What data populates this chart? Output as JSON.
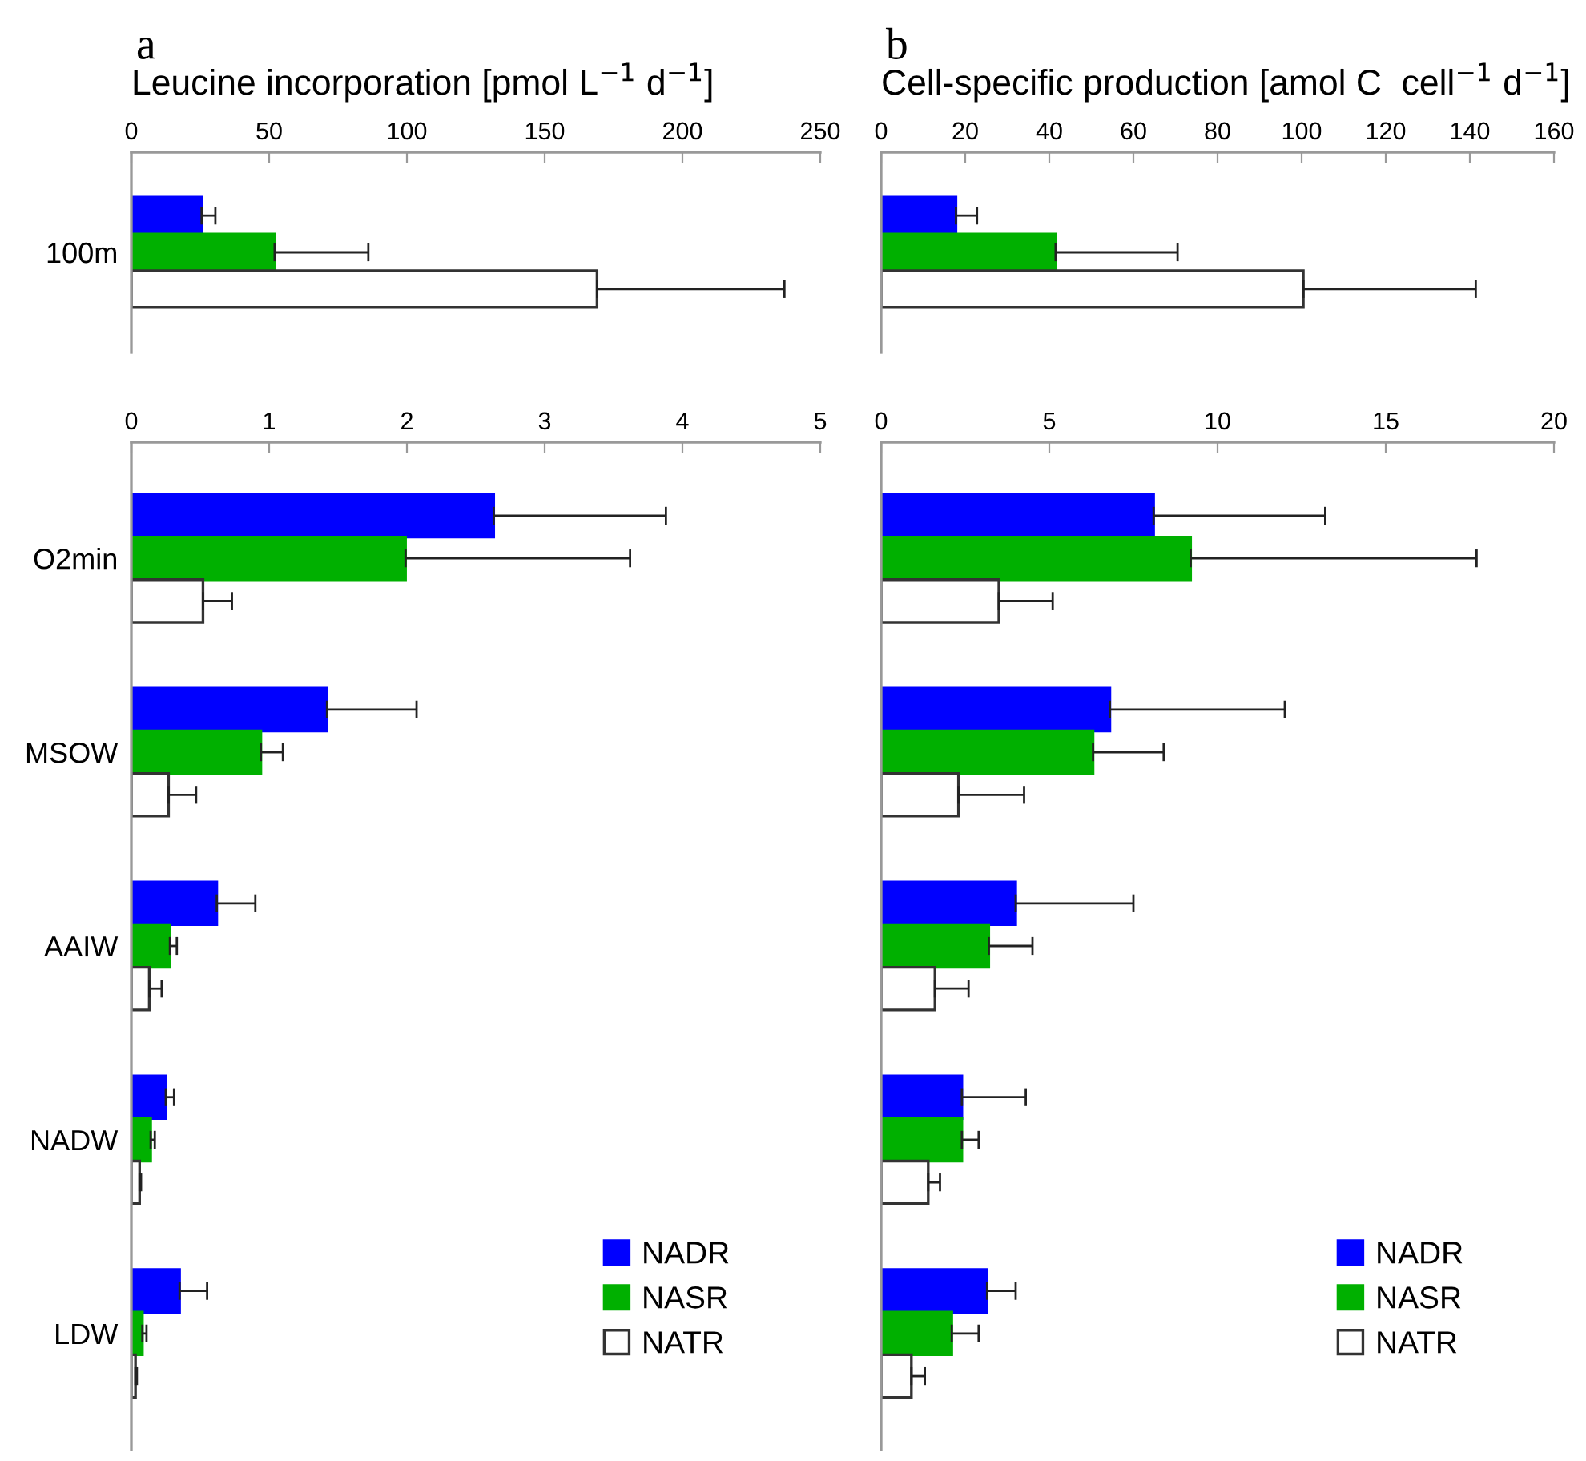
{
  "chart_data": [
    {
      "type": "bar",
      "orientation": "horizontal",
      "annotations": [
        "a"
      ],
      "xlabel": "Leucine incorporation [pmol L$^{−1}$ d$^{−1}$]",
      "categories": [
        "100m"
      ],
      "xlim": [
        0,
        250
      ],
      "xticks": [
        0,
        50,
        100,
        150,
        200,
        250
      ],
      "grid": false,
      "legend": false,
      "series": [
        {
          "color": "#0000ff",
          "values": [
            25.5
          ],
          "errors": [
            5
          ]
        },
        {
          "color": "#00b000",
          "values": [
            52
          ],
          "errors": [
            34
          ]
        },
        {
          "color": "#ffffff",
          "values": [
            169
          ],
          "errors": [
            68
          ]
        }
      ]
    },
    {
      "type": "bar",
      "orientation": "horizontal",
      "categories": [
        "O2min",
        "MSOW",
        "AAIW",
        "NADW",
        "LDW"
      ],
      "xlim": [
        0,
        5
      ],
      "xticks": [
        0,
        1,
        2,
        3,
        4,
        5
      ],
      "grid": false,
      "legend": "bottom right",
      "series": [
        {
          "name": "NADR",
          "color": "#0000ff",
          "values": [
            2.63,
            1.42,
            0.62,
            0.25,
            0.35
          ],
          "errors": [
            1.25,
            0.65,
            0.28,
            0.06,
            0.2
          ]
        },
        {
          "name": "NASR",
          "color": "#00b000",
          "values": [
            1.99,
            0.94,
            0.28,
            0.14,
            0.08
          ],
          "errors": [
            1.63,
            0.16,
            0.05,
            0.03,
            0.03
          ]
        },
        {
          "name": "NATR",
          "color": "#ffffff",
          "values": [
            0.52,
            0.27,
            0.13,
            0.06,
            0.03
          ],
          "errors": [
            0.21,
            0.2,
            0.09,
            0.01,
            0.01
          ]
        }
      ]
    },
    {
      "type": "bar",
      "orientation": "horizontal",
      "annotations": [
        "b"
      ],
      "xlabel": "Cell-specific production [amol C  cell$^{−1}$ d$^{−1}$]",
      "categories": [
        null
      ],
      "tick_labels": "x",
      "xlim": [
        0,
        160
      ],
      "xticks": [
        0,
        20,
        40,
        60,
        80,
        100,
        120,
        140,
        160
      ],
      "grid": false,
      "legend": false,
      "series": [
        {
          "color": "#0000ff",
          "values": [
            17.8
          ],
          "errors": [
            5
          ]
        },
        {
          "color": "#00b000",
          "values": [
            41.5
          ],
          "errors": [
            29
          ]
        },
        {
          "color": "#ffffff",
          "values": [
            100.4
          ],
          "errors": [
            41
          ]
        }
      ]
    },
    {
      "type": "bar",
      "orientation": "horizontal",
      "categories": [
        null,
        null,
        null,
        null,
        null
      ],
      "tick_labels": "x",
      "xlim": [
        0,
        20
      ],
      "xticks": [
        0,
        5,
        10,
        15,
        20
      ],
      "grid": false,
      "legend": "bottom right",
      "series": [
        {
          "name": "NADR",
          "color": "#0000ff",
          "values": [
            8.1,
            6.8,
            4.0,
            2.4,
            3.15
          ],
          "errors": [
            5.1,
            5.2,
            3.5,
            1.9,
            0.85
          ]
        },
        {
          "name": "NASR",
          "color": "#00b000",
          "values": [
            9.2,
            6.3,
            3.2,
            2.4,
            2.1
          ],
          "errors": [
            8.5,
            2.1,
            1.3,
            0.5,
            0.8
          ]
        },
        {
          "name": "NATR",
          "color": "#ffffff",
          "values": [
            3.5,
            2.3,
            1.6,
            1.4,
            0.9
          ],
          "errors": [
            1.6,
            1.95,
            1.0,
            0.35,
            0.4
          ]
        }
      ]
    }
  ]
}
